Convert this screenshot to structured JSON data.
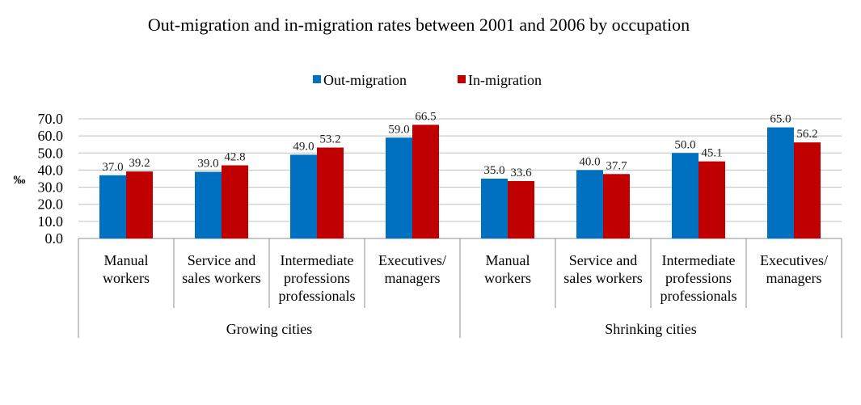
{
  "chart_data": {
    "type": "bar",
    "title": "Out-migration and in-migration rates between 2001 and 2006 by occupation",
    "xlabel": "",
    "ylabel": "‰",
    "ylim": [
      0,
      70
    ],
    "yticks": [
      "0.0",
      "10.0",
      "20.0",
      "30.0",
      "40.0",
      "50.0",
      "60.0",
      "70.0"
    ],
    "grid": true,
    "legend_position": "top-center",
    "groups": [
      {
        "name": "Growing cities",
        "categories": [
          [
            "Manual",
            "workers"
          ],
          [
            "Service and",
            "sales workers"
          ],
          [
            "Intermediate",
            "professions",
            "professionals"
          ],
          [
            "Executives/",
            "managers"
          ]
        ]
      },
      {
        "name": "Shrinking cities",
        "categories": [
          [
            "Manual",
            "workers"
          ],
          [
            "Service and",
            "sales workers"
          ],
          [
            "Intermediate",
            "professions",
            "professionals"
          ],
          [
            "Executives/",
            "managers"
          ]
        ]
      }
    ],
    "series": [
      {
        "name": "Out-migration",
        "color": "#0070C0",
        "values": [
          37.0,
          39.0,
          49.0,
          59.0,
          35.0,
          40.0,
          50.0,
          65.0
        ],
        "labels": [
          "37.0",
          "39.0",
          "49.0",
          "59.0",
          "35.0",
          "40.0",
          "50.0",
          "65.0"
        ]
      },
      {
        "name": "In-migration",
        "color": "#C00000",
        "values": [
          39.2,
          42.8,
          53.2,
          66.5,
          33.6,
          37.7,
          45.1,
          56.2
        ],
        "labels": [
          "39.2",
          "42.8",
          "53.2",
          "66.5",
          "33.6",
          "37.7",
          "45.1",
          "56.2"
        ]
      }
    ]
  }
}
